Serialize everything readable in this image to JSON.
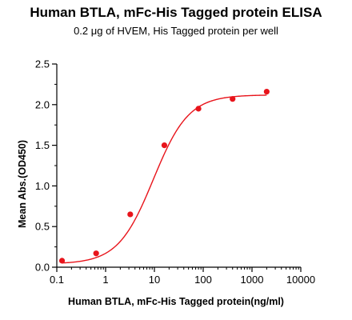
{
  "chart_data": {
    "type": "scatter",
    "title": "Human BTLA, mFc-His Tagged protein ELISA",
    "subtitle": "0.2 μg of HVEM, His Tagged protein per well",
    "xlabel": "Human BTLA, mFc-His Tagged protein(ng/ml)",
    "ylabel": "Mean Abs.(OD450)",
    "x_scale": "log",
    "xlim": [
      0.1,
      10000
    ],
    "ylim": [
      0,
      2.5
    ],
    "x_ticks": [
      0.1,
      1,
      10,
      100,
      1000,
      10000
    ],
    "x_tick_labels": [
      "0.1",
      "1",
      "10",
      "100",
      "1000",
      "10000"
    ],
    "y_ticks": [
      0.0,
      0.5,
      1.0,
      1.5,
      2.0,
      2.5
    ],
    "y_tick_labels": [
      "0.0",
      "0.5",
      "1.0",
      "1.5",
      "2.0",
      "2.5"
    ],
    "grid": false,
    "legend": "none",
    "series": [
      {
        "x": [
          0.128,
          0.64,
          3.2,
          16,
          80,
          400,
          2000
        ],
        "y": [
          0.08,
          0.17,
          0.65,
          1.5,
          1.95,
          2.07,
          2.16
        ]
      }
    ],
    "fit_curve": {
      "model": "4PL",
      "bottom": 0.04,
      "top": 2.12,
      "ec50": 9.5,
      "hill": 1.2
    },
    "color": "#e8141b"
  }
}
